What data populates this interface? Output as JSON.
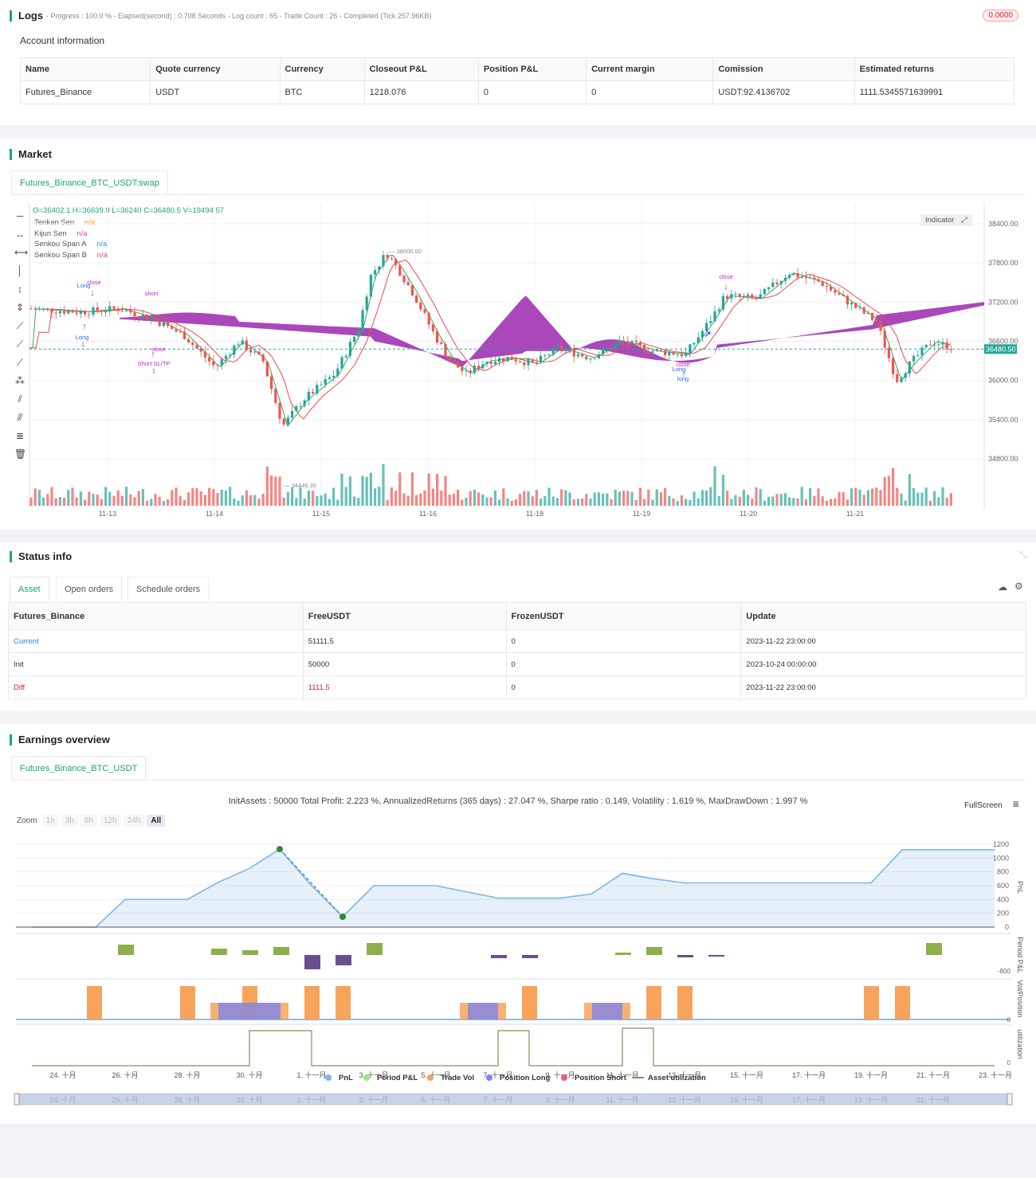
{
  "logs": {
    "title": "Logs",
    "summary": "- Progress : 100.0 % - Elapsed(second) : 0.708  Seconds - Log count : 65 - Trade Count : 26 - Completed (Tick 257.96KB)",
    "badge": "0.0000"
  },
  "account": {
    "title": "Account information",
    "headers": [
      "Name",
      "Quote currency",
      "Currency",
      "Closeout P&L",
      "Position P&L",
      "Current margin",
      "Comission",
      "Estimated returns"
    ],
    "row": [
      "Futures_Binance",
      "USDT",
      "BTC",
      "1218.076",
      "0",
      "0",
      "USDT:92.4136702",
      "1111.5345571639991"
    ]
  },
  "market": {
    "title": "Market",
    "tab": "Futures_Binance_BTC_USDT:swap",
    "ohlc": "O=36402.1 H=36639.9 L=36240 C=36480.5 V=19494.57",
    "legend": [
      {
        "name": "Tenkan Sen",
        "value": "n/a",
        "color": "#f39c12"
      },
      {
        "name": "Kijun Sen",
        "value": "n/a",
        "color": "#e040a0"
      },
      {
        "name": "Senkou Span A",
        "value": "n/a",
        "color": "#2196f3"
      },
      {
        "name": "Senkou Span B",
        "value": "n/a",
        "color": "#e040a0"
      }
    ],
    "indicator_btn": "Indicator",
    "price_labels": [
      "38400.00",
      "37800.00",
      "37200.00",
      "36600.00",
      "36000.00",
      "35400.00",
      "34800.00"
    ],
    "current_price": "36480.50",
    "x_labels": [
      "11-13",
      "11-14",
      "11-15",
      "11-16",
      "11-18",
      "11-19",
      "11-20",
      "11-21"
    ],
    "high_mark": "38000.00",
    "low_mark": "34446.30",
    "annotations": [
      "Long",
      "close",
      "Long",
      "1",
      "short",
      "close",
      "Short SL/TP",
      "1",
      "close",
      "Long",
      "long",
      "close"
    ]
  },
  "status": {
    "title": "Status info",
    "tabs": [
      "Asset",
      "Open orders",
      "Schedule orders"
    ],
    "headers": [
      "Futures_Binance",
      "FreeUSDT",
      "FrozenUSDT",
      "Update"
    ],
    "rows": [
      {
        "label": "Current",
        "free": "51111.5",
        "frozen": "0",
        "update": "2023-11-22 23:00:00",
        "color": "#2f7fd8"
      },
      {
        "label": "Init",
        "free": "50000",
        "frozen": "0",
        "update": "2023-10-24 00:00:00",
        "color": "#333"
      },
      {
        "label": "Diff",
        "free": "1111.5",
        "frozen": "0",
        "update": "2023-11-22 23:00:00",
        "color": "#e02020"
      }
    ]
  },
  "earnings": {
    "title": "Earnings overview",
    "tab": "Futures_Binance_BTC_USDT",
    "stats": "InitAssets : 50000 Total Profit: 2.223 %, AnnualizedReturns (365 days) : 27.047 %, Sharpe ratio : 0.149, Volatility : 1.619 %, MaxDrawDown : 1.997 %",
    "fullscreen": "FullScreen",
    "zoom_label": "Zoom",
    "zoom_options": [
      "1h",
      "3h",
      "8h",
      "12h",
      "24h",
      "All"
    ],
    "pnl_ticks": [
      "1200",
      "1000",
      "800",
      "600",
      "400",
      "200",
      "0"
    ],
    "period_tick": "-800",
    "vol_tick": "0",
    "util_tick": "0",
    "axis_titles": [
      "PnL",
      "Period P&L",
      "Vol/Position",
      "utilization"
    ],
    "x_labels": [
      "24. 十月",
      "26. 十月",
      "28. 十月",
      "30. 十月",
      "1. 十一月",
      "3. 十一月",
      "5. 十一月",
      "7. 十一月",
      "9. 十一月",
      "11. 十一月",
      "13. 十一月",
      "15. 十一月",
      "17. 十一月",
      "19. 十一月",
      "21. 十一月",
      "23. 十一月"
    ],
    "legend": [
      {
        "name": "PnL",
        "color": "#7cb5ec"
      },
      {
        "name": "Period P&L",
        "color": "#90ed7d"
      },
      {
        "name": "Trade Vol",
        "color": "#f7a35c"
      },
      {
        "name": "Position Long",
        "color": "#8085e9"
      },
      {
        "name": "Position Short",
        "color": "#f15c80"
      },
      {
        "name": "Asset utilization",
        "color": "#8d8a5a"
      }
    ],
    "chart_data": {
      "type": "line",
      "title": "",
      "pnl_series": {
        "name": "PnL",
        "x": [
          "24. 十月",
          "25. 十月",
          "26. 十月",
          "27. 十月",
          "28. 十月",
          "29. 十月",
          "30. 十月",
          "31. 十月",
          "1. 十一月",
          "2. 十一月",
          "3. 十一月",
          "5. 十一月",
          "7. 十一月",
          "9. 十一月",
          "10. 十一月",
          "11. 十一月",
          "12. 十一月",
          "13. 十一月",
          "15. 十一月",
          "17. 十一月",
          "19. 十一月",
          "20. 十一月",
          "23. 十一月"
        ],
        "values": [
          0,
          0,
          400,
          400,
          400,
          650,
          850,
          1130,
          600,
          150,
          600,
          600,
          420,
          420,
          480,
          780,
          700,
          640,
          640,
          640,
          640,
          1120,
          1120
        ]
      },
      "ylim": [
        0,
        1200
      ]
    }
  }
}
